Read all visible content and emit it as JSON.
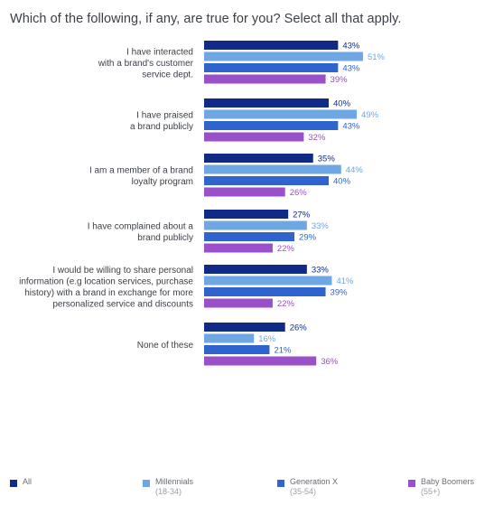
{
  "title": "Which of the following, if any, are true for you? Select all that apply.",
  "colors": {
    "All": "#0f2b87",
    "Millennials": "#6fa7e4",
    "Generation X": "#2f64cf",
    "Baby Boomers": "#9a4fcb",
    "label_text": "#3b3f47"
  },
  "chart_data": {
    "type": "bar",
    "orientation": "horizontal",
    "title": "Which of the following, if any, are true for you? Select all that apply.",
    "xlim": [
      0,
      60
    ],
    "grid": false,
    "legend_position": "bottom",
    "categories": [
      [
        "I have interacted",
        "with a brand's customer",
        "service dept."
      ],
      [
        "I have praised",
        "a brand publicly"
      ],
      [
        "I am a member of a brand",
        "loyalty program"
      ],
      [
        "I have complained about a",
        "brand publicly"
      ],
      [
        "I would be willing to share personal",
        "information (e.g location services, purchase",
        "history) with a brand in exchange for more",
        "personalized service and discounts"
      ],
      [
        "None of these"
      ]
    ],
    "series": [
      {
        "name": "All",
        "sub": "",
        "values": [
          43,
          40,
          35,
          27,
          33,
          26
        ]
      },
      {
        "name": "Millennials",
        "sub": "(18-34)",
        "values": [
          51,
          49,
          44,
          33,
          41,
          16
        ]
      },
      {
        "name": "Generation X",
        "sub": "(35-54)",
        "values": [
          43,
          43,
          40,
          29,
          39,
          21
        ]
      },
      {
        "name": "Baby Boomers",
        "sub": "(55+)",
        "values": [
          39,
          32,
          26,
          22,
          22,
          36
        ]
      }
    ]
  }
}
